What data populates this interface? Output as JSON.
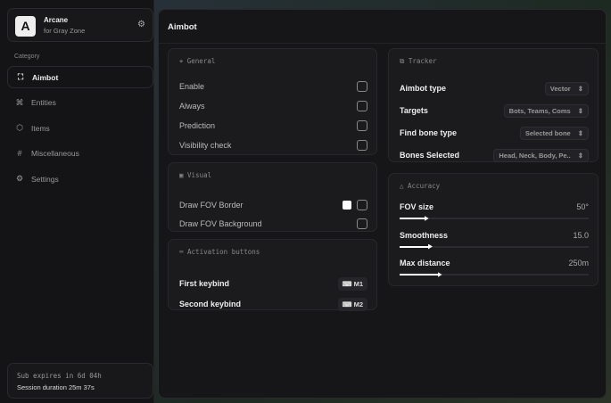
{
  "brand": {
    "logo": "A",
    "name": "Arcane",
    "subtitle": "for Gray Zone"
  },
  "sidebar": {
    "category": "Category",
    "items": [
      {
        "label": "Aimbot",
        "icon": "crosshair-icon",
        "glyph": "⛶",
        "active": true
      },
      {
        "label": "Entities",
        "icon": "user-scan-icon",
        "glyph": "⌘"
      },
      {
        "label": "Items",
        "icon": "box-icon",
        "glyph": "⬡"
      },
      {
        "label": "Miscellaneous",
        "icon": "hash-icon",
        "glyph": "#"
      },
      {
        "label": "Settings",
        "icon": "gear-icon",
        "glyph": "⚙"
      }
    ]
  },
  "subscription": {
    "expires": "Sub expires in 6d 04h",
    "session": "Session duration 25m 37s"
  },
  "main": {
    "title": "Aimbot",
    "general": {
      "title": "General",
      "rows": [
        {
          "label": "Enable",
          "checked": false
        },
        {
          "label": "Always",
          "checked": false
        },
        {
          "label": "Prediction",
          "checked": false
        },
        {
          "label": "Visibility check",
          "checked": false
        }
      ]
    },
    "visual": {
      "title": "Visual",
      "rows": [
        {
          "label": "Draw FOV Border",
          "checked": false,
          "color": "#ffffff"
        },
        {
          "label": "Draw FOV Background",
          "checked": false
        }
      ]
    },
    "activation": {
      "title": "Activation buttons",
      "rows": [
        {
          "label": "First keybind",
          "key": "M1"
        },
        {
          "label": "Second keybind",
          "key": "M2"
        }
      ]
    },
    "tracker": {
      "title": "Tracker",
      "rows": [
        {
          "label": "Aimbot type",
          "value": "Vector"
        },
        {
          "label": "Targets",
          "value": "Bots, Teams, Coms"
        },
        {
          "label": "Find bone type",
          "value": "Selected bone"
        },
        {
          "label": "Bones Selected",
          "value": "Head, Neck, Body, Pe.."
        }
      ]
    },
    "accuracy": {
      "title": "Accuracy",
      "sliders": [
        {
          "label": "FOV size",
          "value": "50°",
          "fraction": 0.14
        },
        {
          "label": "Smoothness",
          "value": "15.0",
          "fraction": 0.16
        },
        {
          "label": "Max distance",
          "value": "250m",
          "fraction": 0.21
        }
      ]
    }
  }
}
